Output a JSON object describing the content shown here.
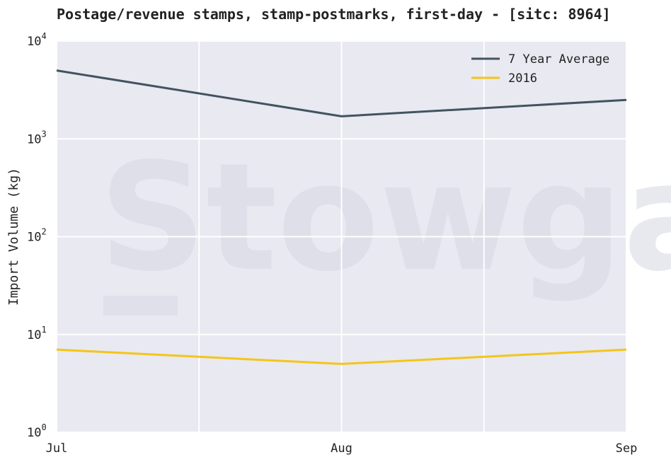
{
  "title": "Postage/revenue stamps, stamp-postmarks, first-day - [sitc: 8964]",
  "watermark": "Stowga.",
  "colors": {
    "plot_background": "#e8e9f1",
    "grid": "#ffffff",
    "avg_line": "#43535f",
    "year_line": "#f5c518"
  },
  "chart_data": {
    "type": "line",
    "title": "Postage/revenue stamps, stamp-postmarks, first-day - [sitc: 8964]",
    "xlabel": "",
    "ylabel": "Import Volume (kg)",
    "yscale": "log",
    "ylim": [
      1,
      10000
    ],
    "categories": [
      "Jul",
      "Aug",
      "Sep"
    ],
    "y_ticks": [
      {
        "base": "10",
        "exp": "0",
        "value": 1
      },
      {
        "base": "10",
        "exp": "1",
        "value": 10
      },
      {
        "base": "10",
        "exp": "2",
        "value": 100
      },
      {
        "base": "10",
        "exp": "3",
        "value": 1000
      },
      {
        "base": "10",
        "exp": "4",
        "value": 10000
      }
    ],
    "grid": true,
    "legend_position": "top-right",
    "series": [
      {
        "name": "7 Year Average",
        "color": "#43535f",
        "values": [
          5000,
          1700,
          2500
        ]
      },
      {
        "name": "2016",
        "color": "#f5c518",
        "values": [
          7,
          5,
          7
        ]
      }
    ]
  }
}
